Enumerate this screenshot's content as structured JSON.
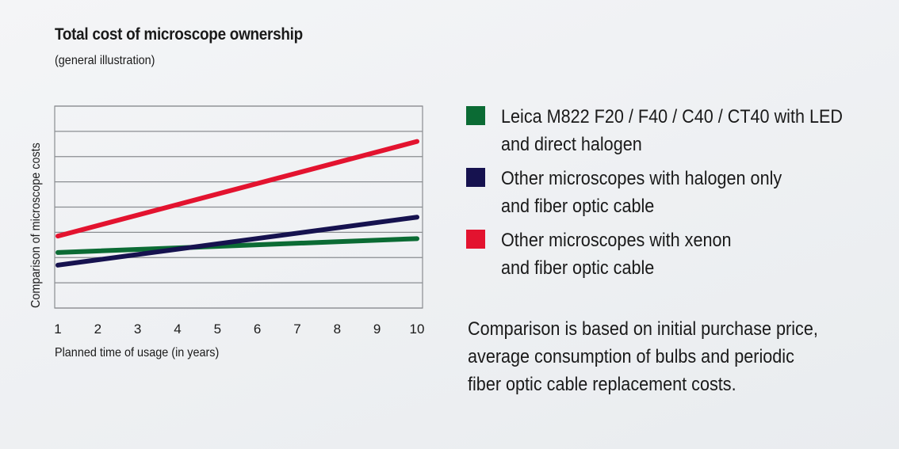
{
  "chart_data": {
    "type": "line",
    "title": "Total cost of microscope ownership",
    "subtitle": "(general illustration)",
    "xlabel": "Planned time of usage (in years)",
    "ylabel": "Comparison of microscope costs",
    "x_ticks": [
      "1",
      "2",
      "3",
      "4",
      "5",
      "6",
      "7",
      "8",
      "9",
      "10"
    ],
    "xlim": [
      1,
      10
    ],
    "ylim": [
      0,
      8
    ],
    "y_gridlines": [
      0,
      1,
      2,
      3,
      4,
      5,
      6,
      7,
      8
    ],
    "grid": true,
    "legend_position": "right",
    "series": [
      {
        "name": "Leica M822 F20 / F40 / C40 / CT40 with LED and direct halogen",
        "label_lines": [
          "Leica M822 F20 / F40 / C40 / CT40 with LED",
          "and direct halogen"
        ],
        "color": "#0b6b34",
        "x": [
          1,
          10
        ],
        "y": [
          2.2,
          2.75
        ]
      },
      {
        "name": "Other microscopes with halogen only and fiber optic cable",
        "label_lines": [
          "Other microscopes with halogen only",
          "and fiber optic cable"
        ],
        "color": "#16124f",
        "x": [
          1,
          10
        ],
        "y": [
          1.7,
          3.6
        ]
      },
      {
        "name": "Other microscopes with xenon and fiber optic cable",
        "label_lines": [
          "Other microscopes with xenon",
          "and fiber optic cable"
        ],
        "color": "#e3132f",
        "x": [
          1,
          10
        ],
        "y": [
          2.85,
          6.6
        ]
      }
    ],
    "annotation_lines": [
      "Comparison is based on initial purchase price,",
      "average consumption of bulbs and periodic",
      "fiber optic cable replacement costs."
    ]
  }
}
